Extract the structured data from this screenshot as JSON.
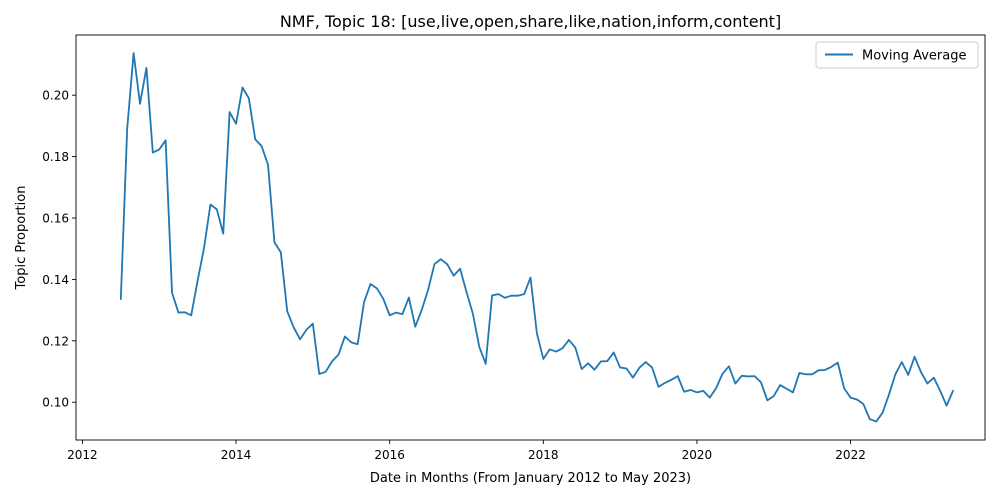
{
  "chart_data": {
    "type": "line",
    "title": "NMF, Topic 18: [use,live,open,share,like,nation,inform,content]",
    "xlabel": "Date in Months (From January 2012 to May 2023)",
    "ylabel": "Topic Proportion",
    "x_ticks": [
      "2012",
      "2014",
      "2016",
      "2018",
      "2020",
      "2022"
    ],
    "y_ticks": [
      "0.10",
      "0.12",
      "0.14",
      "0.16",
      "0.18",
      "0.20"
    ],
    "xlim": [
      "2011-12-01",
      "2023-10-01"
    ],
    "ylim": [
      0.0877,
      0.2196
    ],
    "grid": false,
    "legend_position": "top-right",
    "line_color": "#1f77b4",
    "series": [
      {
        "name": "Moving Average",
        "x": [
          "2012-07",
          "2012-08",
          "2012-09",
          "2012-10",
          "2012-11",
          "2012-12",
          "2013-01",
          "2013-02",
          "2013-03",
          "2013-04",
          "2013-05",
          "2013-06",
          "2013-07",
          "2013-08",
          "2013-09",
          "2013-10",
          "2013-11",
          "2013-12",
          "2014-01",
          "2014-02",
          "2014-03",
          "2014-04",
          "2014-05",
          "2014-06",
          "2014-07",
          "2014-08",
          "2014-09",
          "2014-10",
          "2014-11",
          "2014-12",
          "2015-01",
          "2015-02",
          "2015-03",
          "2015-04",
          "2015-05",
          "2015-06",
          "2015-07",
          "2015-08",
          "2015-09",
          "2015-10",
          "2015-11",
          "2015-12",
          "2016-01",
          "2016-02",
          "2016-03",
          "2016-04",
          "2016-05",
          "2016-06",
          "2016-07",
          "2016-08",
          "2016-09",
          "2016-10",
          "2016-11",
          "2016-12",
          "2017-01",
          "2017-02",
          "2017-03",
          "2017-04",
          "2017-05",
          "2017-06",
          "2017-07",
          "2017-08",
          "2017-09",
          "2017-10",
          "2017-11",
          "2017-12",
          "2018-01",
          "2018-02",
          "2018-03",
          "2018-04",
          "2018-05",
          "2018-06",
          "2018-07",
          "2018-08",
          "2018-09",
          "2018-10",
          "2018-11",
          "2018-12",
          "2019-01",
          "2019-02",
          "2019-03",
          "2019-04",
          "2019-05",
          "2019-06",
          "2019-07",
          "2019-08",
          "2019-09",
          "2019-10",
          "2019-11",
          "2019-12",
          "2020-01",
          "2020-02",
          "2020-03",
          "2020-04",
          "2020-05",
          "2020-06",
          "2020-07",
          "2020-08",
          "2020-09",
          "2020-10",
          "2020-11",
          "2020-12",
          "2021-01",
          "2021-02",
          "2021-03",
          "2021-04",
          "2021-05",
          "2021-06",
          "2021-07",
          "2021-08",
          "2021-09",
          "2021-10",
          "2021-11",
          "2021-12",
          "2022-01",
          "2022-02",
          "2022-03",
          "2022-04",
          "2022-05",
          "2022-06",
          "2022-07",
          "2022-08",
          "2022-09",
          "2022-10",
          "2022-11",
          "2022-12",
          "2023-01",
          "2023-02",
          "2023-03",
          "2023-04",
          "2023-05"
        ],
        "values": [
          0.1336,
          0.1892,
          0.2137,
          0.1972,
          0.2089,
          0.1813,
          0.1823,
          0.1853,
          0.1357,
          0.1292,
          0.1293,
          0.1283,
          0.1396,
          0.1502,
          0.1644,
          0.1628,
          0.1549,
          0.1945,
          0.1907,
          0.2025,
          0.199,
          0.1856,
          0.1834,
          0.1773,
          0.1521,
          0.1488,
          0.1296,
          0.1244,
          0.1205,
          0.1236,
          0.1256,
          0.1092,
          0.1099,
          0.1133,
          0.1155,
          0.1214,
          0.1195,
          0.1189,
          0.1326,
          0.1385,
          0.1371,
          0.1337,
          0.1283,
          0.1292,
          0.1287,
          0.1341,
          0.1246,
          0.13,
          0.1366,
          0.145,
          0.1466,
          0.1449,
          0.1412,
          0.1435,
          0.1359,
          0.1288,
          0.118,
          0.1125,
          0.1348,
          0.1352,
          0.134,
          0.1347,
          0.1347,
          0.1352,
          0.1406,
          0.1224,
          0.1141,
          0.1172,
          0.1165,
          0.1176,
          0.1203,
          0.1178,
          0.1108,
          0.1127,
          0.1106,
          0.1133,
          0.1134,
          0.1162,
          0.1113,
          0.111,
          0.108,
          0.1112,
          0.1131,
          0.1113,
          0.105,
          0.1063,
          0.1073,
          0.1085,
          0.1034,
          0.104,
          0.1032,
          0.1037,
          0.1015,
          0.1046,
          0.1093,
          0.1117,
          0.1061,
          0.1086,
          0.1084,
          0.1085,
          0.1065,
          0.1006,
          0.102,
          0.1056,
          0.1044,
          0.1032,
          0.1095,
          0.1091,
          0.1091,
          0.1104,
          0.1105,
          0.1115,
          0.1129,
          0.1045,
          0.1015,
          0.1009,
          0.0994,
          0.0945,
          0.0937,
          0.0966,
          0.1025,
          0.1091,
          0.1131,
          0.1089,
          0.1148,
          0.1098,
          0.1061,
          0.108,
          0.1037,
          0.0989,
          0.1037
        ]
      }
    ]
  }
}
